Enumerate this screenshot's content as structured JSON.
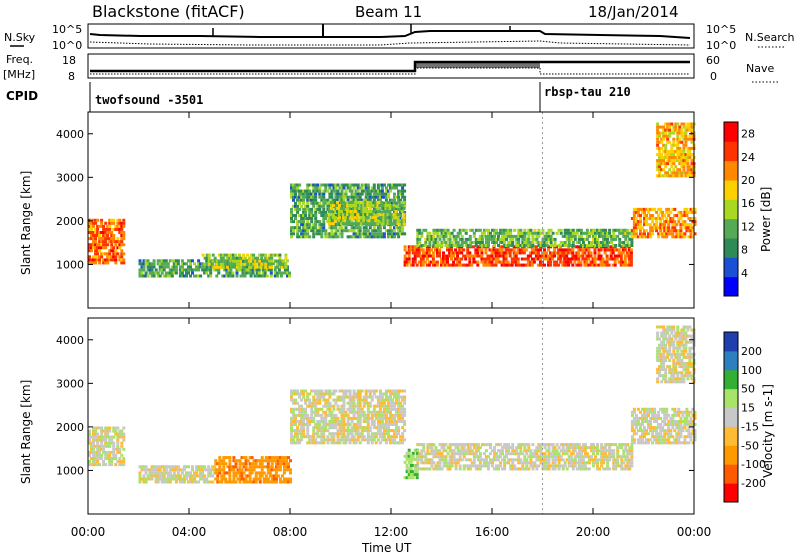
{
  "header": {
    "station": "Blackstone (fitACF)",
    "beam": "Beam 11",
    "date": "18/Jan/2014"
  },
  "top_panel": {
    "left_label": "N.Sky",
    "left_ticks": [
      "10^5",
      "10^0"
    ],
    "right_ticks": [
      "10^5",
      "10^0"
    ],
    "right_label": "N.Search"
  },
  "freq_panel": {
    "left_label_line1": "Freq.",
    "left_label_line2": "[MHz]",
    "left_ticks": [
      "18",
      "8"
    ],
    "right_ticks": [
      "60",
      "0"
    ],
    "right_label": "Nave"
  },
  "cpid_panel": {
    "label": "CPID",
    "segments": [
      {
        "name": "twofsound -3501",
        "start_hour": 0
      },
      {
        "name": "rbsp-tau 210",
        "start_hour": 18
      }
    ]
  },
  "colors": {
    "power_scale": [
      "#0000ff",
      "#1a4fd6",
      "#2e8b57",
      "#55aa55",
      "#a8d820",
      "#ffd000",
      "#ff8800",
      "#ff3300",
      "#ff0000"
    ],
    "velocity_scale": [
      "#ff0000",
      "#ff5a00",
      "#ff9900",
      "#ffbb33",
      "#c8c8c8",
      "#a8e36a",
      "#33b033",
      "#2e7fbf",
      "#1f3fae"
    ]
  },
  "chart_data": [
    {
      "type": "heatmap",
      "panel": "power",
      "ylabel": "Slant Range [km]",
      "xlim_hours": [
        0,
        24
      ],
      "ylim": [
        0,
        4500
      ],
      "yticks": [
        "1000",
        "2000",
        "3000",
        "4000"
      ],
      "colorbar": {
        "label": "Power [dB]",
        "ticks": [
          "4",
          "8",
          "12",
          "16",
          "20",
          "24",
          "28"
        ],
        "range": [
          0,
          30
        ]
      },
      "bands": [
        {
          "t0": 0.0,
          "t1": 1.4,
          "r0": 1000,
          "r1": 2000,
          "level": 24
        },
        {
          "t0": 2.0,
          "t1": 8.0,
          "r0": 700,
          "r1": 1100,
          "level": 10
        },
        {
          "t0": 4.5,
          "t1": 7.8,
          "r0": 900,
          "r1": 1200,
          "level": 14
        },
        {
          "t0": 8.0,
          "t1": 12.5,
          "r0": 1600,
          "r1": 2800,
          "level": 10
        },
        {
          "t0": 9.5,
          "t1": 12.5,
          "r0": 1900,
          "r1": 2400,
          "level": 14
        },
        {
          "t0": 12.5,
          "t1": 21.5,
          "r0": 950,
          "r1": 1400,
          "level": 26
        },
        {
          "t0": 13.0,
          "t1": 21.5,
          "r0": 1400,
          "r1": 1800,
          "level": 12
        },
        {
          "t0": 21.5,
          "t1": 24.0,
          "r0": 1600,
          "r1": 2300,
          "level": 22
        },
        {
          "t0": 22.5,
          "t1": 24.0,
          "r0": 3000,
          "r1": 4200,
          "level": 20
        }
      ]
    },
    {
      "type": "heatmap",
      "panel": "velocity",
      "ylabel": "Slant Range [km]",
      "xlabel": "Time UT",
      "xlim_hours": [
        0,
        24
      ],
      "ylim": [
        0,
        4500
      ],
      "yticks": [
        "1000",
        "2000",
        "3000",
        "4000"
      ],
      "xticks": [
        "00:00",
        "04:00",
        "08:00",
        "12:00",
        "16:00",
        "20:00",
        "00:00"
      ],
      "colorbar": {
        "label": "Velocity [m s-1]",
        "ticks": [
          "-200",
          "-100",
          "-50",
          "-15",
          "15",
          "50",
          "100",
          "200"
        ]
      },
      "bands": [
        {
          "t0": 0.0,
          "t1": 1.4,
          "r0": 1100,
          "r1": 2000,
          "level": 0
        },
        {
          "t0": 2.0,
          "t1": 5.0,
          "r0": 700,
          "r1": 1100,
          "level": 0
        },
        {
          "t0": 5.0,
          "t1": 8.0,
          "r0": 700,
          "r1": 1300,
          "level": -80
        },
        {
          "t0": 8.0,
          "t1": 12.5,
          "r0": 1600,
          "r1": 2800,
          "level": 0
        },
        {
          "t0": 12.5,
          "t1": 13.0,
          "r0": 800,
          "r1": 1500,
          "level": 40
        },
        {
          "t0": 13.0,
          "t1": 21.5,
          "r0": 1000,
          "r1": 1600,
          "level": 0
        },
        {
          "t0": 21.5,
          "t1": 24.0,
          "r0": 1600,
          "r1": 2400,
          "level": 0
        },
        {
          "t0": 22.5,
          "t1": 24.0,
          "r0": 3000,
          "r1": 4300,
          "level": 0
        }
      ]
    }
  ]
}
